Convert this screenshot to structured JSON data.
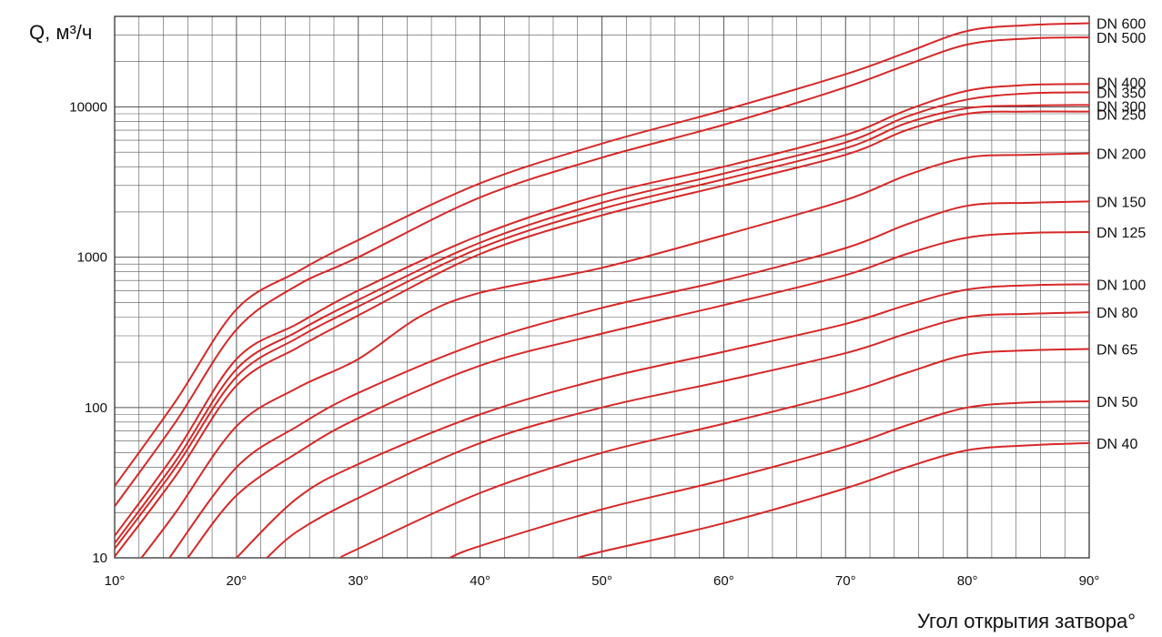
{
  "chart_data": {
    "type": "line",
    "title": "",
    "ylabel": "Q, м³/ч",
    "xlabel": "Угол открытия затвора°",
    "x_scale": "linear",
    "y_scale": "log",
    "xlim": [
      10,
      90
    ],
    "ylim": [
      10,
      40000
    ],
    "grid": true,
    "line_color": "#d62828",
    "grid_color": "#555555",
    "x_ticks": [
      10,
      20,
      30,
      40,
      50,
      60,
      70,
      80,
      90
    ],
    "x_tick_labels": [
      "10°",
      "20°",
      "30°",
      "40°",
      "50°",
      "60°",
      "70°",
      "80°",
      "90°"
    ],
    "y_ticks": [
      10,
      100,
      1000,
      10000
    ],
    "y_tick_labels": [
      "10",
      "100",
      "1000",
      "10000"
    ],
    "series": [
      {
        "name": "DN 600",
        "points": [
          [
            10,
            30
          ],
          [
            15,
            110
          ],
          [
            20,
            450
          ],
          [
            25,
            800
          ],
          [
            30,
            1300
          ],
          [
            40,
            3100
          ],
          [
            50,
            5700
          ],
          [
            60,
            9500
          ],
          [
            70,
            16500
          ],
          [
            75,
            23000
          ],
          [
            80,
            32000
          ],
          [
            85,
            35000
          ],
          [
            90,
            36000
          ]
        ]
      },
      {
        "name": "DN 500",
        "points": [
          [
            10,
            22
          ],
          [
            15,
            80
          ],
          [
            20,
            330
          ],
          [
            25,
            650
          ],
          [
            30,
            1000
          ],
          [
            40,
            2500
          ],
          [
            50,
            4600
          ],
          [
            60,
            7600
          ],
          [
            70,
            13500
          ],
          [
            75,
            19000
          ],
          [
            80,
            26000
          ],
          [
            85,
            28500
          ],
          [
            90,
            29000
          ]
        ]
      },
      {
        "name": "DN 400",
        "points": [
          [
            10,
            14
          ],
          [
            15,
            50
          ],
          [
            20,
            210
          ],
          [
            25,
            360
          ],
          [
            30,
            600
          ],
          [
            40,
            1400
          ],
          [
            50,
            2600
          ],
          [
            60,
            4000
          ],
          [
            70,
            6500
          ],
          [
            75,
            9500
          ],
          [
            80,
            12800
          ],
          [
            85,
            14000
          ],
          [
            90,
            14200
          ]
        ]
      },
      {
        "name": "DN 350",
        "points": [
          [
            10,
            12.5
          ],
          [
            15,
            44
          ],
          [
            20,
            180
          ],
          [
            25,
            320
          ],
          [
            30,
            520
          ],
          [
            40,
            1250
          ],
          [
            50,
            2300
          ],
          [
            60,
            3600
          ],
          [
            70,
            5800
          ],
          [
            75,
            8600
          ],
          [
            80,
            11200
          ],
          [
            85,
            12300
          ],
          [
            90,
            12500
          ]
        ]
      },
      {
        "name": "DN 300",
        "points": [
          [
            10,
            11.5
          ],
          [
            15,
            40
          ],
          [
            20,
            160
          ],
          [
            25,
            290
          ],
          [
            30,
            470
          ],
          [
            40,
            1150
          ],
          [
            50,
            2100
          ],
          [
            60,
            3300
          ],
          [
            70,
            5300
          ],
          [
            75,
            7800
          ],
          [
            80,
            9800
          ],
          [
            85,
            10200
          ],
          [
            90,
            10300
          ]
        ]
      },
      {
        "name": "DN 250",
        "points": [
          [
            10,
            10.2
          ],
          [
            15,
            35
          ],
          [
            20,
            140
          ],
          [
            25,
            250
          ],
          [
            30,
            410
          ],
          [
            40,
            1050
          ],
          [
            50,
            1900
          ],
          [
            60,
            3000
          ],
          [
            70,
            4800
          ],
          [
            75,
            7000
          ],
          [
            80,
            9000
          ],
          [
            85,
            9300
          ],
          [
            90,
            9300
          ]
        ]
      },
      {
        "name": "DN 200",
        "points": [
          [
            12.2,
            10
          ],
          [
            15,
            20
          ],
          [
            20,
            75
          ],
          [
            25,
            135
          ],
          [
            30,
            210
          ],
          [
            35,
            400
          ],
          [
            40,
            580
          ],
          [
            50,
            850
          ],
          [
            60,
            1400
          ],
          [
            70,
            2400
          ],
          [
            75,
            3500
          ],
          [
            80,
            4600
          ],
          [
            85,
            4800
          ],
          [
            90,
            4900
          ]
        ]
      },
      {
        "name": "DN 150",
        "points": [
          [
            14.5,
            10
          ],
          [
            20,
            40
          ],
          [
            25,
            75
          ],
          [
            30,
            125
          ],
          [
            40,
            270
          ],
          [
            50,
            460
          ],
          [
            60,
            700
          ],
          [
            70,
            1150
          ],
          [
            75,
            1650
          ],
          [
            80,
            2200
          ],
          [
            85,
            2300
          ],
          [
            90,
            2350
          ]
        ]
      },
      {
        "name": "DN 125",
        "points": [
          [
            16,
            10
          ],
          [
            20,
            26
          ],
          [
            25,
            50
          ],
          [
            30,
            85
          ],
          [
            40,
            190
          ],
          [
            50,
            310
          ],
          [
            60,
            480
          ],
          [
            70,
            760
          ],
          [
            75,
            1050
          ],
          [
            80,
            1350
          ],
          [
            85,
            1450
          ],
          [
            90,
            1470
          ]
        ]
      },
      {
        "name": "DN 100",
        "points": [
          [
            20,
            10
          ],
          [
            25,
            25
          ],
          [
            30,
            42
          ],
          [
            40,
            90
          ],
          [
            50,
            155
          ],
          [
            60,
            235
          ],
          [
            70,
            360
          ],
          [
            75,
            480
          ],
          [
            80,
            610
          ],
          [
            85,
            650
          ],
          [
            90,
            660
          ]
        ]
      },
      {
        "name": "DN 80",
        "points": [
          [
            22.5,
            10
          ],
          [
            25,
            15
          ],
          [
            30,
            25
          ],
          [
            40,
            58
          ],
          [
            50,
            100
          ],
          [
            60,
            150
          ],
          [
            70,
            230
          ],
          [
            75,
            310
          ],
          [
            80,
            400
          ],
          [
            85,
            420
          ],
          [
            90,
            430
          ]
        ]
      },
      {
        "name": "DN 65",
        "points": [
          [
            28.5,
            10
          ],
          [
            30,
            11.5
          ],
          [
            40,
            27
          ],
          [
            50,
            50
          ],
          [
            60,
            78
          ],
          [
            70,
            125
          ],
          [
            75,
            170
          ],
          [
            80,
            225
          ],
          [
            85,
            240
          ],
          [
            90,
            245
          ]
        ]
      },
      {
        "name": "DN 50",
        "points": [
          [
            37.5,
            10
          ],
          [
            40,
            12
          ],
          [
            50,
            21
          ],
          [
            60,
            33
          ],
          [
            70,
            55
          ],
          [
            75,
            76
          ],
          [
            80,
            100
          ],
          [
            85,
            108
          ],
          [
            90,
            110
          ]
        ]
      },
      {
        "name": "DN 40",
        "points": [
          [
            48,
            10
          ],
          [
            50,
            11
          ],
          [
            60,
            17
          ],
          [
            70,
            29
          ],
          [
            75,
            40
          ],
          [
            80,
            52
          ],
          [
            85,
            56
          ],
          [
            90,
            58
          ]
        ]
      }
    ]
  }
}
